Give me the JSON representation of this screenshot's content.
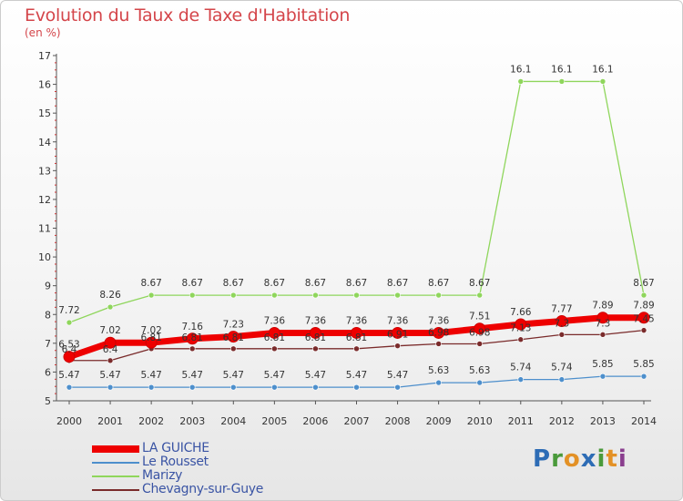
{
  "header": {
    "title": "Evolution du Taux de Taxe d'Habitation",
    "unit": "(en %)"
  },
  "logo": {
    "text": "Proxiti"
  },
  "chart_data": {
    "type": "line",
    "title": "Evolution du Taux de Taxe d'Habitation",
    "ylabel": "(en %)",
    "xlabel": "",
    "x": [
      "2000",
      "2001",
      "2002",
      "2003",
      "2004",
      "2005",
      "2006",
      "2007",
      "2008",
      "2009",
      "2010",
      "2011",
      "2012",
      "2013",
      "2014"
    ],
    "ylim": [
      5,
      17
    ],
    "yticks": [
      "5",
      "6",
      "7",
      "8",
      "9",
      "10",
      "11",
      "12",
      "13",
      "14",
      "15",
      "16",
      "17"
    ],
    "grid": false,
    "legend_position": "bottom-left",
    "series": [
      {
        "name": "LA GUICHE",
        "color": "#ee0000",
        "values": [
          6.53,
          7.02,
          7.02,
          7.16,
          7.23,
          7.36,
          7.36,
          7.36,
          7.36,
          7.36,
          7.51,
          7.66,
          7.77,
          7.89,
          7.89
        ],
        "labels": [
          "6.53",
          "7.02",
          "7.02",
          "7.16",
          "7.23",
          "7.36",
          "7.36",
          "7.36",
          "7.36",
          "7.36",
          "7.51",
          "7.66",
          "7.77",
          "7.89",
          "7.89"
        ]
      },
      {
        "name": "Le Rousset",
        "color": "#4d8fcc",
        "values": [
          5.47,
          5.47,
          5.47,
          5.47,
          5.47,
          5.47,
          5.47,
          5.47,
          5.47,
          5.63,
          5.63,
          5.74,
          5.74,
          5.85,
          5.85
        ],
        "labels": [
          "5.47",
          "5.47",
          "5.47",
          "5.47",
          "5.47",
          "5.47",
          "5.47",
          "5.47",
          "5.47",
          "5.63",
          "5.63",
          "5.74",
          "5.74",
          "5.85",
          "5.85"
        ]
      },
      {
        "name": "Marizy",
        "color": "#8fd65c",
        "values": [
          7.72,
          8.26,
          8.67,
          8.67,
          8.67,
          8.67,
          8.67,
          8.67,
          8.67,
          8.67,
          8.67,
          16.1,
          16.1,
          16.1,
          8.67
        ],
        "labels": [
          "7.72",
          "8.26",
          "8.67",
          "8.67",
          "8.67",
          "8.67",
          "8.67",
          "8.67",
          "8.67",
          "8.67",
          "8.67",
          "16.1",
          "16.1",
          "16.1",
          "8.67"
        ]
      },
      {
        "name": "Chevagny-sur-Guye",
        "color": "#7a2b2b",
        "values": [
          6.4,
          6.4,
          6.81,
          6.81,
          6.81,
          6.81,
          6.81,
          6.81,
          6.91,
          6.98,
          6.98,
          7.13,
          7.3,
          7.3,
          7.45
        ],
        "labels": [
          "6.4",
          "6.4",
          "6.81",
          "6.81",
          "6.81",
          "6.81",
          "6.81",
          "6.81",
          "6.91",
          "6.98",
          "6.98",
          "7.13",
          "7.3",
          "7.3",
          "7.45"
        ]
      }
    ]
  }
}
